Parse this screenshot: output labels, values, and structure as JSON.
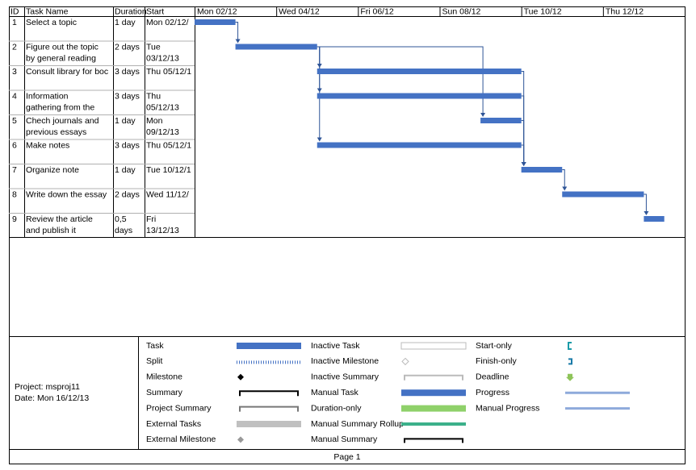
{
  "table": {
    "headers": [
      "ID",
      "Task Name",
      "Duration",
      "Start"
    ],
    "rows": [
      [
        [
          "1"
        ],
        [
          "Select a topic"
        ],
        [
          "1 day"
        ],
        [
          "Mon 02/12/"
        ]
      ],
      [
        [
          "2"
        ],
        [
          "Figure out the topic",
          "by general reading"
        ],
        [
          "2 days"
        ],
        [
          "Tue",
          "03/12/13"
        ]
      ],
      [
        [
          "3"
        ],
        [
          "Consult library for boc"
        ],
        [
          "3 days"
        ],
        [
          "Thu 05/12/1"
        ]
      ],
      [
        [
          "4"
        ],
        [
          "Information",
          "gathering from the"
        ],
        [
          "3 days"
        ],
        [
          "Thu",
          "05/12/13"
        ]
      ],
      [
        [
          "5"
        ],
        [
          "Chech journals and",
          "previous essays"
        ],
        [
          "1 day"
        ],
        [
          "Mon",
          "09/12/13"
        ]
      ],
      [
        [
          "6"
        ],
        [
          "Make notes"
        ],
        [
          "3 days"
        ],
        [
          "Thu 05/12/1"
        ]
      ],
      [
        [
          "7"
        ],
        [
          "Organize note"
        ],
        [
          "1 day"
        ],
        [
          "Tue 10/12/1"
        ]
      ],
      [
        [
          "8"
        ],
        [
          "Write down the essay"
        ],
        [
          "2 days"
        ],
        [
          "Wed 11/12/"
        ]
      ],
      [
        [
          "9"
        ],
        [
          "Review the article",
          "and publish it"
        ],
        [
          "0,5",
          "days"
        ],
        [
          "Fri",
          "13/12/13"
        ]
      ]
    ]
  },
  "gantt": {
    "xlim": [
      0,
      12
    ],
    "color": "#4472c4",
    "timescale": [
      {
        "value": 0,
        "label": "Mon 02/12"
      },
      {
        "value": 2,
        "label": "Wed 04/12"
      },
      {
        "value": 4,
        "label": "Fri 06/12"
      },
      {
        "value": 6,
        "label": "Sun 08/12"
      },
      {
        "value": 8,
        "label": "Tue 10/12"
      },
      {
        "value": 10,
        "label": "Thu 12/12"
      }
    ],
    "bars": [
      {
        "start": 0,
        "end": 1
      },
      {
        "start": 1,
        "end": 3
      },
      {
        "start": 3,
        "end": 8
      },
      {
        "start": 3,
        "end": 8
      },
      {
        "start": 7,
        "end": 8
      },
      {
        "start": 3,
        "end": 8
      },
      {
        "start": 8,
        "end": 9
      },
      {
        "start": 9,
        "end": 11
      },
      {
        "start": 11,
        "end": 11.5
      }
    ]
  },
  "legend": {
    "project": "Project: msproj11",
    "date": "Date: Mon 16/12/13",
    "columns": [
      [
        "Task",
        "Split",
        "Milestone",
        "Summary",
        "Project Summary",
        "External Tasks",
        "External Milestone"
      ],
      [
        "Inactive Task",
        "Inactive Milestone",
        "Inactive Summary",
        "Manual Task",
        "Duration-only",
        "Manual Summary Rollup",
        "Manual Summary"
      ],
      [
        "Start-only",
        "Finish-only",
        "Deadline",
        "Progress",
        "Manual Progress"
      ]
    ]
  },
  "footer": "Page 1"
}
